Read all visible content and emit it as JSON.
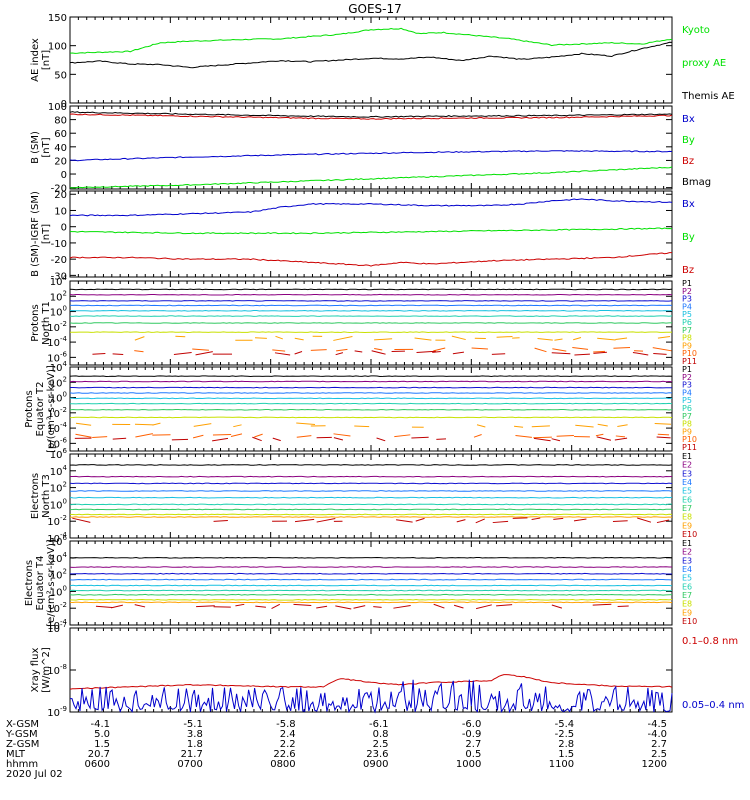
{
  "title": "GOES-17",
  "colors": {
    "black": "#000000",
    "green": "#00e000",
    "blue": "#0000cc",
    "red": "#cc0000",
    "P": [
      "#000000",
      "#8b0080",
      "#1010d0",
      "#1e78ff",
      "#18c0e0",
      "#20d0b0",
      "#30c860",
      "#c8e000",
      "#ffa000",
      "#ff6000",
      "#c00000"
    ],
    "E": [
      "#000000",
      "#8b0080",
      "#1010d0",
      "#1e78ff",
      "#18c0e0",
      "#20d0b0",
      "#30c860",
      "#c8e000",
      "#ffa000",
      "#c00000"
    ]
  },
  "chart_data": [
    {
      "type": "line",
      "panel": "ae",
      "ylabel": [
        "AE index",
        "[nT]"
      ],
      "ylim": [
        0,
        150
      ],
      "yticks": [
        "0",
        "50",
        "100",
        "150"
      ],
      "legend": [
        {
          "text": "Kyoto",
          "color": "green"
        },
        {
          "text": "proxy AE",
          "color": "green"
        },
        {
          "text": "Themis AE",
          "color": "black"
        }
      ],
      "series": [
        {
          "name": "Kyoto proxy AE",
          "color": "green",
          "x": [
            0,
            0.1,
            0.15,
            0.2,
            0.3,
            0.35,
            0.45,
            0.5,
            0.55,
            0.58,
            0.62,
            0.7,
            0.73,
            0.8,
            0.85,
            0.9,
            0.95,
            1
          ],
          "values": [
            87,
            90,
            105,
            108,
            111,
            112,
            120,
            128,
            130,
            121,
            123,
            115,
            112,
            101,
            103,
            105,
            103,
            112
          ]
        },
        {
          "name": "Themis AE",
          "color": "black",
          "x": [
            0,
            0.05,
            0.1,
            0.15,
            0.2,
            0.25,
            0.3,
            0.35,
            0.4,
            0.45,
            0.5,
            0.55,
            0.6,
            0.65,
            0.7,
            0.75,
            0.8,
            0.85,
            0.9,
            0.95,
            1
          ],
          "values": [
            70,
            73,
            68,
            67,
            62,
            66,
            70,
            74,
            72,
            75,
            78,
            77,
            80,
            74,
            82,
            76,
            80,
            86,
            82,
            95,
            106
          ]
        }
      ]
    },
    {
      "type": "line",
      "panel": "bsm",
      "ylabel": [
        "B (SM)",
        "[nT]"
      ],
      "ylim": [
        -22,
        100
      ],
      "yticks": [
        "-20",
        "0",
        "20",
        "40",
        "60",
        "80",
        "100"
      ],
      "legend": [
        {
          "text": "Bx",
          "color": "blue"
        },
        {
          "text": "By",
          "color": "green"
        },
        {
          "text": "Bz",
          "color": "red"
        },
        {
          "text": "Bmag",
          "color": "black"
        }
      ],
      "series": [
        {
          "name": "Bx",
          "color": "blue",
          "x": [
            0,
            0.2,
            0.4,
            0.6,
            0.8,
            1
          ],
          "values": [
            20,
            25,
            29,
            32,
            34,
            33
          ]
        },
        {
          "name": "By",
          "color": "green",
          "x": [
            0,
            0.2,
            0.4,
            0.6,
            0.8,
            1
          ],
          "values": [
            -20,
            -16,
            -10,
            -4,
            2,
            10
          ]
        },
        {
          "name": "Bz",
          "color": "red",
          "x": [
            0,
            0.2,
            0.4,
            0.5,
            0.6,
            0.8,
            1
          ],
          "values": [
            88,
            85,
            82,
            81,
            82,
            83,
            86
          ]
        },
        {
          "name": "Bmag",
          "color": "black",
          "x": [
            0,
            0.2,
            0.4,
            0.5,
            0.6,
            0.8,
            1
          ],
          "values": [
            91,
            88,
            85,
            84,
            85,
            86,
            88
          ]
        }
      ]
    },
    {
      "type": "line",
      "panel": "bigrf",
      "ylabel": [
        "B (SM)-IGRF (SM)",
        "[nT]"
      ],
      "ylim": [
        -31,
        22
      ],
      "yticks": [
        "-30",
        "-20",
        "-10",
        "0",
        "10",
        "20"
      ],
      "legend": [
        {
          "text": "Bx",
          "color": "blue"
        },
        {
          "text": "By",
          "color": "green"
        },
        {
          "text": "Bz",
          "color": "red"
        }
      ],
      "series": [
        {
          "name": "Bx",
          "color": "blue",
          "x": [
            0,
            0.1,
            0.2,
            0.3,
            0.35,
            0.4,
            0.5,
            0.6,
            0.7,
            0.75,
            0.8,
            0.85,
            0.9,
            1
          ],
          "values": [
            7,
            7,
            8,
            9,
            12,
            14,
            14,
            13,
            13,
            14,
            16,
            17,
            16,
            15
          ]
        },
        {
          "name": "By",
          "color": "green",
          "x": [
            0,
            0.2,
            0.4,
            0.6,
            0.8,
            1
          ],
          "values": [
            -3,
            -4,
            -4,
            -3,
            -2,
            -1
          ]
        },
        {
          "name": "Bz",
          "color": "red",
          "x": [
            0,
            0.1,
            0.2,
            0.3,
            0.4,
            0.5,
            0.55,
            0.6,
            0.7,
            0.8,
            0.9,
            1
          ],
          "values": [
            -19,
            -19,
            -20,
            -20,
            -22,
            -24,
            -22,
            -23,
            -21,
            -20,
            -19,
            -16
          ]
        }
      ]
    },
    {
      "type": "line",
      "panel": "pn",
      "ylabel": [
        "Protons",
        "North T1"
      ],
      "log": true,
      "ylim": [
        -7,
        4
      ],
      "yticks": [
        "10^4",
        "10^2",
        "10^0",
        "10^-2",
        "10^-4",
        "10^-6"
      ],
      "legend": [
        "P1",
        "P2",
        "P3",
        "P4",
        "P5",
        "P6",
        "P7",
        "P8",
        "P9",
        "P10",
        "P11"
      ],
      "series_levels": [
        2.9,
        2.2,
        1.4,
        0.8,
        0.1,
        -0.6,
        -1.5,
        -2.7,
        -3.5,
        -5.0,
        -5.4
      ],
      "dashed": [
        false,
        false,
        false,
        false,
        false,
        false,
        false,
        false,
        true,
        true,
        true
      ]
    },
    {
      "type": "line",
      "panel": "pe",
      "ylabel": [
        "Protons",
        "Equator T2",
        "[p/(cm²-s-sr-keV)]"
      ],
      "log": true,
      "ylim": [
        -7,
        4
      ],
      "yticks": [
        "10^4",
        "10^2",
        "10^0",
        "10^-2",
        "10^-4",
        "10^-6"
      ],
      "legend": [
        "P1",
        "P2",
        "P3",
        "P4",
        "P5",
        "P6",
        "P7",
        "P8",
        "P9",
        "P10",
        "P11"
      ],
      "series_levels": [
        2.8,
        2.1,
        1.3,
        0.6,
        -0.1,
        -0.8,
        -1.6,
        -2.6,
        -3.6,
        -5.0,
        -5.4
      ],
      "dashed": [
        false,
        false,
        false,
        false,
        false,
        false,
        false,
        false,
        true,
        true,
        true
      ]
    },
    {
      "type": "line",
      "panel": "en",
      "ylabel": [
        "Electrons",
        "North T3"
      ],
      "log": true,
      "ylim": [
        -4,
        6
      ],
      "yticks": [
        "10^6",
        "10^4",
        "10^2",
        "10^0",
        "10^-2",
        "10^-4"
      ],
      "legend": [
        "E1",
        "E2",
        "E3",
        "E4",
        "E5",
        "E6",
        "E7",
        "E8",
        "E9",
        "E10"
      ],
      "series_levels": [
        4.7,
        3.3,
        2.5,
        1.6,
        0.8,
        0.0,
        -0.6,
        -1.2,
        -1.5,
        -1.9
      ],
      "dashed": [
        false,
        false,
        false,
        false,
        false,
        false,
        false,
        false,
        false,
        true
      ]
    },
    {
      "type": "line",
      "panel": "ee",
      "ylabel": [
        "Electrons",
        "Equator T4",
        "[e/(cm²-s-sr-keV)]"
      ],
      "log": true,
      "ylim": [
        -4,
        6
      ],
      "yticks": [
        "10^6",
        "10^4",
        "10^2",
        "10^0",
        "10^-2",
        "10^-4"
      ],
      "legend": [
        "E1",
        "E2",
        "E3",
        "E4",
        "E5",
        "E6",
        "E7",
        "E8",
        "E9",
        "E10"
      ],
      "series_levels": [
        4.0,
        2.9,
        2.1,
        1.4,
        0.7,
        0.1,
        -0.4,
        -1.0,
        -1.3,
        -1.8
      ],
      "dashed": [
        false,
        false,
        false,
        false,
        false,
        false,
        false,
        false,
        false,
        true
      ]
    },
    {
      "type": "line",
      "panel": "xray",
      "ylabel": [
        "Xray flux",
        "[W/m^2]"
      ],
      "log": true,
      "ylim": [
        -9,
        -7
      ],
      "yticks": [
        "10^-7",
        "10^-8",
        "10^-9"
      ],
      "legend": [
        {
          "text": "0.1–0.8 nm",
          "color": "red"
        },
        {
          "text": "0.05–0.4 nm",
          "color": "blue"
        }
      ],
      "series": [
        {
          "name": "0.1–0.8 nm",
          "color": "red",
          "x": [
            0,
            0.1,
            0.2,
            0.3,
            0.35,
            0.42,
            0.45,
            0.5,
            0.55,
            0.6,
            0.7,
            0.72,
            0.75,
            0.8,
            0.9,
            1
          ],
          "values": [
            -8.45,
            -8.4,
            -8.35,
            -8.38,
            -8.4,
            -8.4,
            -8.2,
            -8.3,
            -8.35,
            -8.3,
            -8.25,
            -8.1,
            -8.15,
            -8.3,
            -8.38,
            -8.4
          ]
        },
        {
          "name": "0.05–0.4 nm",
          "color": "blue",
          "noise": true,
          "base": -9,
          "amp": 0.6
        }
      ]
    }
  ],
  "xaxis": {
    "rows": [
      {
        "label": "X-GSM",
        "values": [
          "-4.1",
          "-5.1",
          "-5.8",
          "-6.1",
          "-6.0",
          "-5.4",
          "-4.5"
        ]
      },
      {
        "label": "Y-GSM",
        "values": [
          "5.0",
          "3.8",
          "2.4",
          "0.8",
          "-0.9",
          "-2.5",
          "-4.0"
        ]
      },
      {
        "label": "Z-GSM",
        "values": [
          "1.5",
          "1.8",
          "2.2",
          "2.5",
          "2.7",
          "2.8",
          "2.7"
        ]
      },
      {
        "label": "MLT",
        "values": [
          "20.7",
          "21.7",
          "22.6",
          "23.6",
          "0.5",
          "1.5",
          "2.5"
        ]
      },
      {
        "label": "hhmm",
        "values": [
          "0600",
          "0700",
          "0800",
          "0900",
          "1000",
          "1100",
          "1200"
        ]
      }
    ],
    "date": "2020 Jul 02"
  }
}
